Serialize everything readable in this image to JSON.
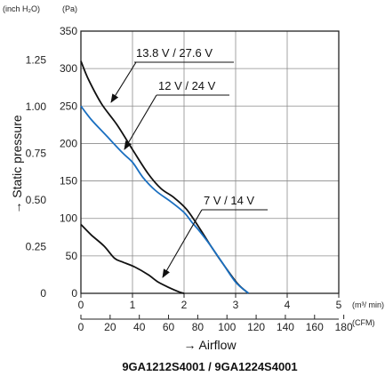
{
  "chart_data": {
    "type": "line",
    "title": "9GA1212S4001 / 9GA1224S4001",
    "xlabel": "→  Airflow",
    "ylabel": "→  Static pressure",
    "x_units": {
      "primary": "(m³/ min)",
      "secondary": "(CFM)"
    },
    "y_units": {
      "primary": "(Pa)",
      "secondary": "(inch H₂O)"
    },
    "xlim": [
      0,
      5
    ],
    "ylim": [
      0,
      350
    ],
    "x_ticks": [
      "0",
      "1",
      "2",
      "3",
      "4",
      "5"
    ],
    "x2_ticks": [
      "0",
      "20",
      "40",
      "60",
      "80",
      "100",
      "120",
      "140",
      "160",
      "180"
    ],
    "x2_tick_values": [
      0,
      0.5663,
      1.1327,
      1.699,
      2.2653,
      2.8317,
      3.398,
      3.9644,
      4.5307,
      5.097
    ],
    "y_ticks": [
      "0",
      "50",
      "100",
      "150",
      "200",
      "250",
      "300",
      "350"
    ],
    "y2_ticks": [
      "0",
      "0.25",
      "0.50",
      "0.75",
      "1.00",
      "1.25"
    ],
    "y2_tick_values": [
      0,
      62.27,
      124.54,
      186.81,
      249.08,
      311.35
    ],
    "grid": true,
    "series": [
      {
        "name": "13.8 V / 27.6 V",
        "color": "#111111",
        "x": [
          0,
          0.15,
          0.4,
          0.7,
          1.0,
          1.3,
          1.55,
          1.8,
          2.05,
          2.3,
          2.55,
          2.8,
          3.05,
          3.25
        ],
        "y": [
          310,
          285,
          253,
          225,
          192,
          160,
          140,
          128,
          112,
          87,
          60,
          35,
          12,
          0
        ]
      },
      {
        "name": "12 V / 24 V",
        "color": "#1a6fc0",
        "x": [
          0,
          0.2,
          0.5,
          0.8,
          1.0,
          1.2,
          1.45,
          1.75,
          2.0,
          2.15,
          2.3,
          2.5,
          2.75,
          3.0,
          3.25
        ],
        "y": [
          250,
          232,
          210,
          188,
          175,
          155,
          137,
          122,
          108,
          95,
          83,
          65,
          40,
          15,
          0
        ]
      },
      {
        "name": "7 V / 14 V",
        "color": "#111111",
        "x": [
          0,
          0.2,
          0.45,
          0.65,
          0.8,
          1.05,
          1.3,
          1.5,
          1.7,
          1.9,
          2.0
        ],
        "y": [
          92,
          78,
          63,
          47,
          42,
          35,
          25,
          15,
          8,
          2,
          0
        ]
      }
    ],
    "annotations": [
      {
        "text": "13.8 V / 27.6 V",
        "series": 0
      },
      {
        "text": "12 V / 24 V",
        "series": 1
      },
      {
        "text": "7 V / 14 V",
        "series": 2
      }
    ]
  }
}
